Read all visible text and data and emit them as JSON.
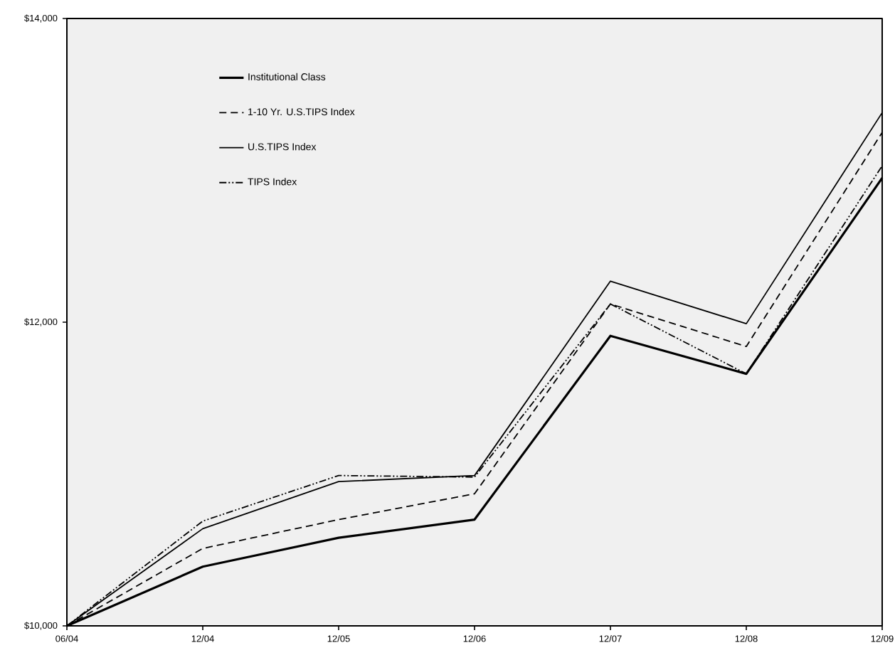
{
  "chart_data": {
    "type": "line",
    "categories": [
      "06/04",
      "12/04",
      "12/05",
      "12/06",
      "12/07",
      "12/08",
      "12/09"
    ],
    "ylim": [
      10000,
      14000
    ],
    "yticks": [
      {
        "value": 10000,
        "label": "$10,000"
      },
      {
        "value": 12000,
        "label": "$12,000"
      },
      {
        "value": 14000,
        "label": "$14,000"
      }
    ],
    "legend": "top left",
    "grid": false,
    "series": [
      {
        "name": "Institutional Class",
        "color": "#000000",
        "line_style": "solid",
        "values": [
          10000,
          10390,
          10580,
          10700,
          11910,
          11660,
          12950
        ]
      },
      {
        "name": "1-10 Yr. U.S.TIPS Index",
        "color": "#000000",
        "line_style": "dashed",
        "values": [
          10000,
          10510,
          10700,
          10870,
          12120,
          11840,
          13250
        ]
      },
      {
        "name": "U.S.TIPS Index",
        "color": "#000000",
        "line_style": "solid",
        "values": [
          10000,
          10640,
          10950,
          10990,
          12270,
          11990,
          13380
        ]
      },
      {
        "name": "TIPS Index",
        "color": "#000000",
        "line_style": "dashdotted",
        "values": [
          10000,
          10690,
          10990,
          10980,
          12120,
          11660,
          13030
        ]
      }
    ]
  }
}
